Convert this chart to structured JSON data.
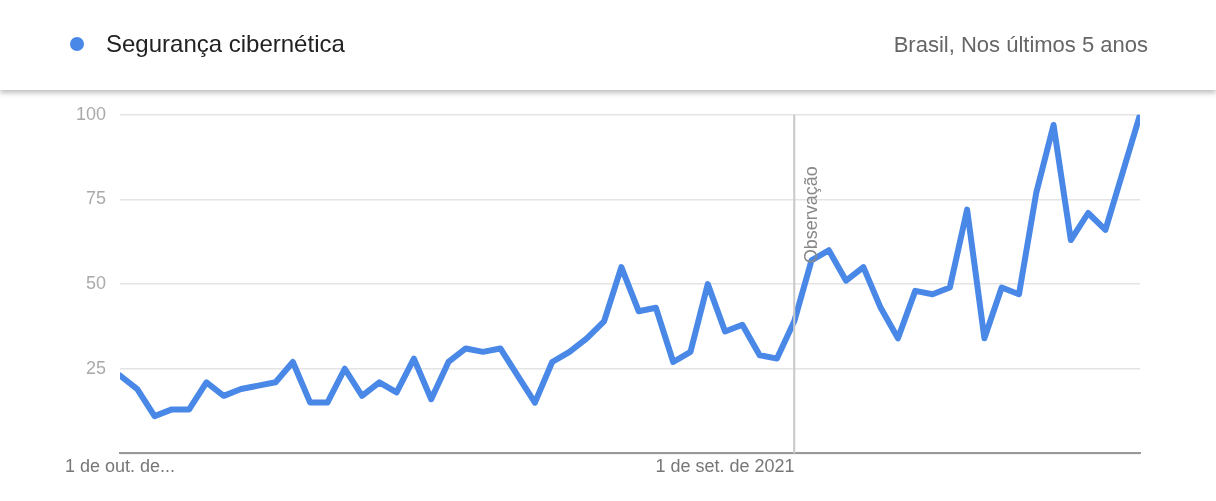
{
  "chart_data": {
    "type": "line",
    "subtitle": "Brasil, Nos últimos 5 anos",
    "x": [
      "2018-10",
      "2018-11",
      "2018-12",
      "2019-01",
      "2019-02",
      "2019-03",
      "2019-04",
      "2019-05",
      "2019-06",
      "2019-07",
      "2019-08",
      "2019-09",
      "2019-10",
      "2019-11",
      "2019-12",
      "2020-01",
      "2020-02",
      "2020-03",
      "2020-04",
      "2020-05",
      "2020-06",
      "2020-07",
      "2020-08",
      "2020-09",
      "2020-10",
      "2020-11",
      "2020-12",
      "2021-01",
      "2021-02",
      "2021-03",
      "2021-04",
      "2021-05",
      "2021-06",
      "2021-07",
      "2021-08",
      "2021-09",
      "2021-10",
      "2021-11",
      "2021-12",
      "2022-01",
      "2022-02",
      "2022-03",
      "2022-04",
      "2022-05",
      "2022-06",
      "2022-07",
      "2022-08",
      "2022-09",
      "2022-10",
      "2022-11",
      "2022-12",
      "2023-01",
      "2023-02",
      "2023-03",
      "2023-04",
      "2023-05",
      "2023-06",
      "2023-07",
      "2023-08",
      "2023-09"
    ],
    "series": [
      {
        "name": "Segurança cibernética",
        "color": "#4a88e8",
        "values": [
          23,
          19,
          11,
          13,
          13,
          21,
          17,
          19,
          20,
          21,
          27,
          15,
          15,
          25,
          17,
          21,
          18,
          28,
          16,
          27,
          31,
          30,
          31,
          23,
          15,
          27,
          30,
          34,
          39,
          55,
          42,
          43,
          27,
          30,
          50,
          36,
          38,
          29,
          28,
          39,
          57,
          60,
          51,
          55,
          43,
          34,
          48,
          47,
          49,
          72,
          34,
          49,
          47,
          77,
          97,
          63,
          71,
          66,
          83,
          100
        ]
      }
    ],
    "xlim": [
      "2018-10",
      "2023-09"
    ],
    "xticks": [
      {
        "value": "2018-10",
        "label": "1 de out. de..."
      },
      {
        "value": "2021-09",
        "label": "1 de set. de 2021"
      }
    ],
    "ylim": [
      0,
      100
    ],
    "yticks": [
      {
        "value": 0,
        "label": null
      },
      25,
      50,
      75,
      100
    ],
    "grid": "y",
    "legend": "top left",
    "marker": "none",
    "line_style": "solid",
    "ref_lines": [
      {
        "axis": "x",
        "value": "2022-01",
        "label": "Observação",
        "color": "#c8c8c8"
      }
    ]
  }
}
